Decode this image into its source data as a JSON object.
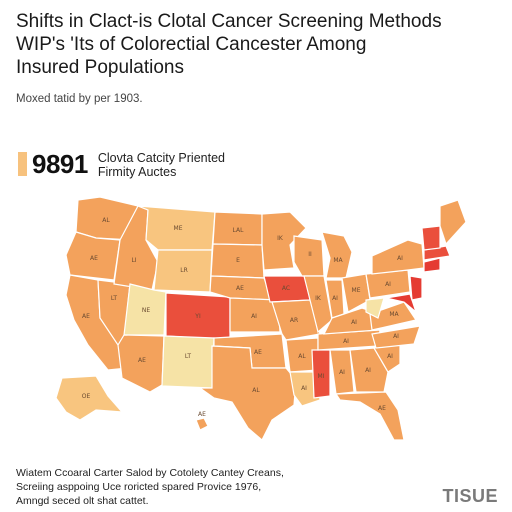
{
  "title": {
    "line1": "Shifts in Clact-is Clotal Cancer Screening Methods",
    "line2": "WIP's 'Its of Colorectial Cancester Among",
    "line3": "Insured Populations"
  },
  "subtitle": "Moxed tatid by per 1903.",
  "legend": {
    "value": "9891",
    "label_line1": "Clovta Catcity Priented",
    "label_line2": "Firmity Auctes",
    "swatch_color": "#f7c27e"
  },
  "colors": {
    "orange": "#f3a25c",
    "dark_orange": "#ef8c4a",
    "light": "#f8c57f",
    "red": "#ea4f3c",
    "deep_red": "#e53b32",
    "pale_yellow": "#f6e3a6"
  },
  "map_labels": {
    "wa": "AL",
    "or": "AE",
    "id": "LI",
    "mt": "ME",
    "nd": "LAL",
    "sd": "E",
    "mn": "IK",
    "wi": "II",
    "mi": "MA",
    "ut": "NE",
    "co": "YI",
    "az": "AE",
    "nm": "LT",
    "tx": "AL",
    "ok": "AE",
    "ks": "AI",
    "ne": "AE",
    "mo": "AR",
    "ar": "AL",
    "la": "AI",
    "ms": "MI",
    "al": "AI",
    "ga": "AI",
    "fl": "AE",
    "tn": "AI",
    "ky": "AI",
    "oh": "ME",
    "in": "AI",
    "il": "IK",
    "va": "MA",
    "nc": "AI",
    "sc": "AI",
    "pa": "AI",
    "ny": "AI",
    "ak": "OE",
    "hi": "AE",
    "ca": "AE",
    "nv": "LT",
    "wy": "LR",
    "ia": "AC"
  },
  "footnote": {
    "line1": "Wiatem Ccoaral Carter Salod by Cotolety Cantey Creans,",
    "line2": "Screiing asppoing Uce roricted spared Provice 1976,",
    "line3": "Amngd seced olt shat cattet."
  },
  "logo_text": "TISUE"
}
